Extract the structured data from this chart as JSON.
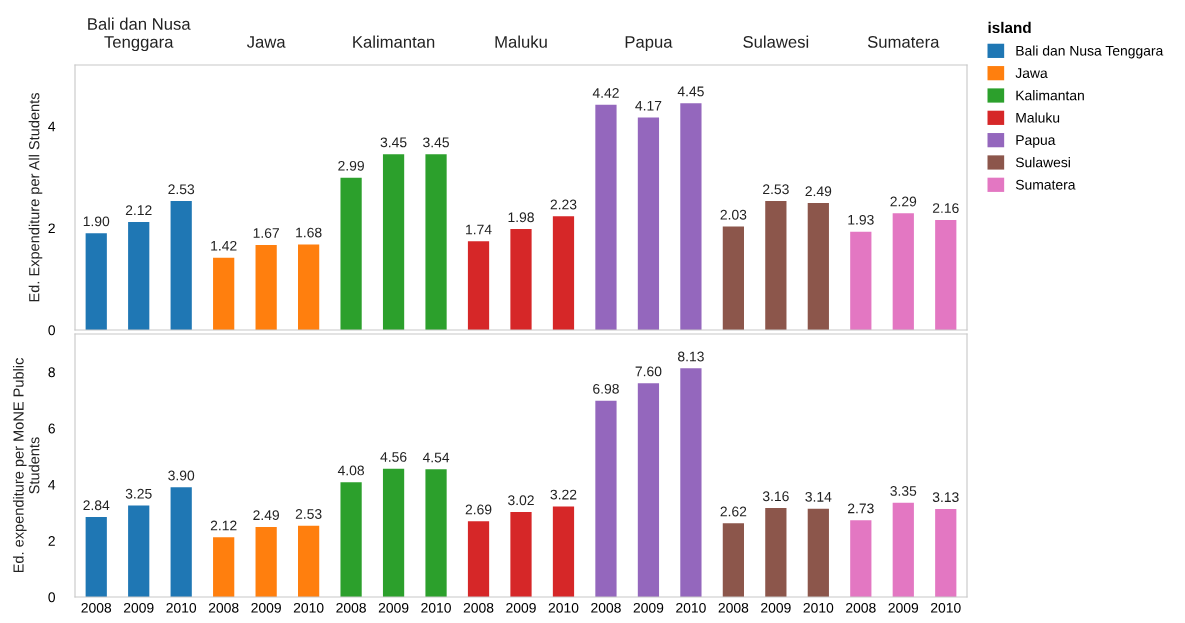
{
  "chart_data": [
    {
      "type": "bar",
      "ylabel": "Ed. Expenditure per All Students",
      "categories": [
        "2008",
        "2009",
        "2010",
        "2008",
        "2009",
        "2010",
        "2008",
        "2009",
        "2010",
        "2008",
        "2009",
        "2010",
        "2008",
        "2009",
        "2010",
        "2008",
        "2009",
        "2010",
        "2008",
        "2009",
        "2010"
      ],
      "ylim": [
        0,
        5.2
      ],
      "yticks": [
        0,
        2,
        4
      ],
      "tick_labels": "y",
      "data_labels": true,
      "legend": "right",
      "legend_title": "island",
      "annotations": [
        "Bali dan Nusa\nTenggara",
        "Jawa",
        "Kalimantan",
        "Maluku",
        "Papua",
        "Sulawesi",
        "Sumatera"
      ],
      "series": [
        {
          "name": "Bali dan Nusa Tenggara",
          "color": "#1f77b4",
          "values": [
            1.9,
            2.12,
            2.53,
            null,
            null,
            null,
            null,
            null,
            null,
            null,
            null,
            null,
            null,
            null,
            null,
            null,
            null,
            null,
            null,
            null,
            null
          ],
          "value_labels": [
            "1.90",
            "2.12",
            "2.53",
            null,
            null,
            null,
            null,
            null,
            null,
            null,
            null,
            null,
            null,
            null,
            null,
            null,
            null,
            null,
            null,
            null,
            null
          ]
        },
        {
          "name": "Jawa",
          "color": "#ff7f0e",
          "values": [
            null,
            null,
            null,
            1.42,
            1.67,
            1.68,
            null,
            null,
            null,
            null,
            null,
            null,
            null,
            null,
            null,
            null,
            null,
            null,
            null,
            null,
            null
          ],
          "value_labels": [
            null,
            null,
            null,
            "1.42",
            "1.67",
            "1.68",
            null,
            null,
            null,
            null,
            null,
            null,
            null,
            null,
            null,
            null,
            null,
            null,
            null,
            null,
            null
          ]
        },
        {
          "name": "Kalimantan",
          "color": "#2ca02c",
          "values": [
            null,
            null,
            null,
            null,
            null,
            null,
            2.99,
            3.45,
            3.45,
            null,
            null,
            null,
            null,
            null,
            null,
            null,
            null,
            null,
            null,
            null,
            null
          ],
          "value_labels": [
            null,
            null,
            null,
            null,
            null,
            null,
            "2.99",
            "3.45",
            "3.45",
            null,
            null,
            null,
            null,
            null,
            null,
            null,
            null,
            null,
            null,
            null,
            null
          ]
        },
        {
          "name": "Maluku",
          "color": "#d62728",
          "values": [
            null,
            null,
            null,
            null,
            null,
            null,
            null,
            null,
            null,
            1.74,
            1.98,
            2.23,
            null,
            null,
            null,
            null,
            null,
            null,
            null,
            null,
            null
          ],
          "value_labels": [
            null,
            null,
            null,
            null,
            null,
            null,
            null,
            null,
            null,
            "1.74",
            "1.98",
            "2.23",
            null,
            null,
            null,
            null,
            null,
            null,
            null,
            null,
            null
          ]
        },
        {
          "name": "Papua",
          "color": "#9467bd",
          "values": [
            null,
            null,
            null,
            null,
            null,
            null,
            null,
            null,
            null,
            null,
            null,
            null,
            4.42,
            4.17,
            4.45,
            null,
            null,
            null,
            null,
            null,
            null
          ],
          "value_labels": [
            null,
            null,
            null,
            null,
            null,
            null,
            null,
            null,
            null,
            null,
            null,
            null,
            "4.42",
            "4.17",
            "4.45",
            null,
            null,
            null,
            null,
            null,
            null
          ]
        },
        {
          "name": "Sulawesi",
          "color": "#8c564b",
          "values": [
            null,
            null,
            null,
            null,
            null,
            null,
            null,
            null,
            null,
            null,
            null,
            null,
            null,
            null,
            null,
            2.03,
            2.53,
            2.49,
            null,
            null,
            null
          ],
          "value_labels": [
            null,
            null,
            null,
            null,
            null,
            null,
            null,
            null,
            null,
            null,
            null,
            null,
            null,
            null,
            null,
            "2.03",
            "2.53",
            "2.49",
            null,
            null,
            null
          ]
        },
        {
          "name": "Sumatera",
          "color": "#e377c2",
          "values": [
            null,
            null,
            null,
            null,
            null,
            null,
            null,
            null,
            null,
            null,
            null,
            null,
            null,
            null,
            null,
            null,
            null,
            null,
            1.93,
            2.29,
            2.16
          ],
          "value_labels": [
            null,
            null,
            null,
            null,
            null,
            null,
            null,
            null,
            null,
            null,
            null,
            null,
            null,
            null,
            null,
            null,
            null,
            null,
            "1.93",
            "2.29",
            "2.16"
          ]
        }
      ]
    },
    {
      "type": "bar",
      "ylabel": "Ed. expenditure per MoNE Public\nStudents",
      "categories": [
        "2008",
        "2009",
        "2010",
        "2008",
        "2009",
        "2010",
        "2008",
        "2009",
        "2010",
        "2008",
        "2009",
        "2010",
        "2008",
        "2009",
        "2010",
        "2008",
        "2009",
        "2010",
        "2008",
        "2009",
        "2010"
      ],
      "ylim": [
        0,
        9.35
      ],
      "yticks": [
        0,
        2,
        4,
        6,
        8
      ],
      "data_labels": true,
      "series": [
        {
          "color": "#1f77b4",
          "values": [
            2.84,
            3.25,
            3.9,
            null,
            null,
            null,
            null,
            null,
            null,
            null,
            null,
            null,
            null,
            null,
            null,
            null,
            null,
            null,
            null,
            null,
            null
          ],
          "value_labels": [
            "2.84",
            "3.25",
            "3.90",
            null,
            null,
            null,
            null,
            null,
            null,
            null,
            null,
            null,
            null,
            null,
            null,
            null,
            null,
            null,
            null,
            null,
            null
          ]
        },
        {
          "color": "#ff7f0e",
          "values": [
            null,
            null,
            null,
            2.12,
            2.49,
            2.53,
            null,
            null,
            null,
            null,
            null,
            null,
            null,
            null,
            null,
            null,
            null,
            null,
            null,
            null,
            null
          ],
          "value_labels": [
            null,
            null,
            null,
            "2.12",
            "2.49",
            "2.53",
            null,
            null,
            null,
            null,
            null,
            null,
            null,
            null,
            null,
            null,
            null,
            null,
            null,
            null,
            null
          ]
        },
        {
          "color": "#2ca02c",
          "values": [
            null,
            null,
            null,
            null,
            null,
            null,
            4.08,
            4.56,
            4.54,
            null,
            null,
            null,
            null,
            null,
            null,
            null,
            null,
            null,
            null,
            null,
            null
          ],
          "value_labels": [
            null,
            null,
            null,
            null,
            null,
            null,
            "4.08",
            "4.56",
            "4.54",
            null,
            null,
            null,
            null,
            null,
            null,
            null,
            null,
            null,
            null,
            null,
            null
          ]
        },
        {
          "color": "#d62728",
          "values": [
            null,
            null,
            null,
            null,
            null,
            null,
            null,
            null,
            null,
            2.69,
            3.02,
            3.22,
            null,
            null,
            null,
            null,
            null,
            null,
            null,
            null,
            null
          ],
          "value_labels": [
            null,
            null,
            null,
            null,
            null,
            null,
            null,
            null,
            null,
            "2.69",
            "3.02",
            "3.22",
            null,
            null,
            null,
            null,
            null,
            null,
            null,
            null,
            null
          ]
        },
        {
          "color": "#9467bd",
          "values": [
            null,
            null,
            null,
            null,
            null,
            null,
            null,
            null,
            null,
            null,
            null,
            null,
            6.98,
            7.6,
            8.13,
            null,
            null,
            null,
            null,
            null,
            null
          ],
          "value_labels": [
            null,
            null,
            null,
            null,
            null,
            null,
            null,
            null,
            null,
            null,
            null,
            null,
            "6.98",
            "7.60",
            "8.13",
            null,
            null,
            null,
            null,
            null,
            null
          ]
        },
        {
          "color": "#8c564b",
          "values": [
            null,
            null,
            null,
            null,
            null,
            null,
            null,
            null,
            null,
            null,
            null,
            null,
            null,
            null,
            null,
            2.62,
            3.16,
            3.14,
            null,
            null,
            null
          ],
          "value_labels": [
            null,
            null,
            null,
            null,
            null,
            null,
            null,
            null,
            null,
            null,
            null,
            null,
            null,
            null,
            null,
            "2.62",
            "3.16",
            "3.14",
            null,
            null,
            null
          ]
        },
        {
          "color": "#e377c2",
          "values": [
            null,
            null,
            null,
            null,
            null,
            null,
            null,
            null,
            null,
            null,
            null,
            null,
            null,
            null,
            null,
            null,
            null,
            null,
            2.73,
            3.35,
            3.13
          ],
          "value_labels": [
            null,
            null,
            null,
            null,
            null,
            null,
            null,
            null,
            null,
            null,
            null,
            null,
            null,
            null,
            null,
            null,
            null,
            null,
            "2.73",
            "3.35",
            "3.13"
          ]
        }
      ]
    }
  ]
}
